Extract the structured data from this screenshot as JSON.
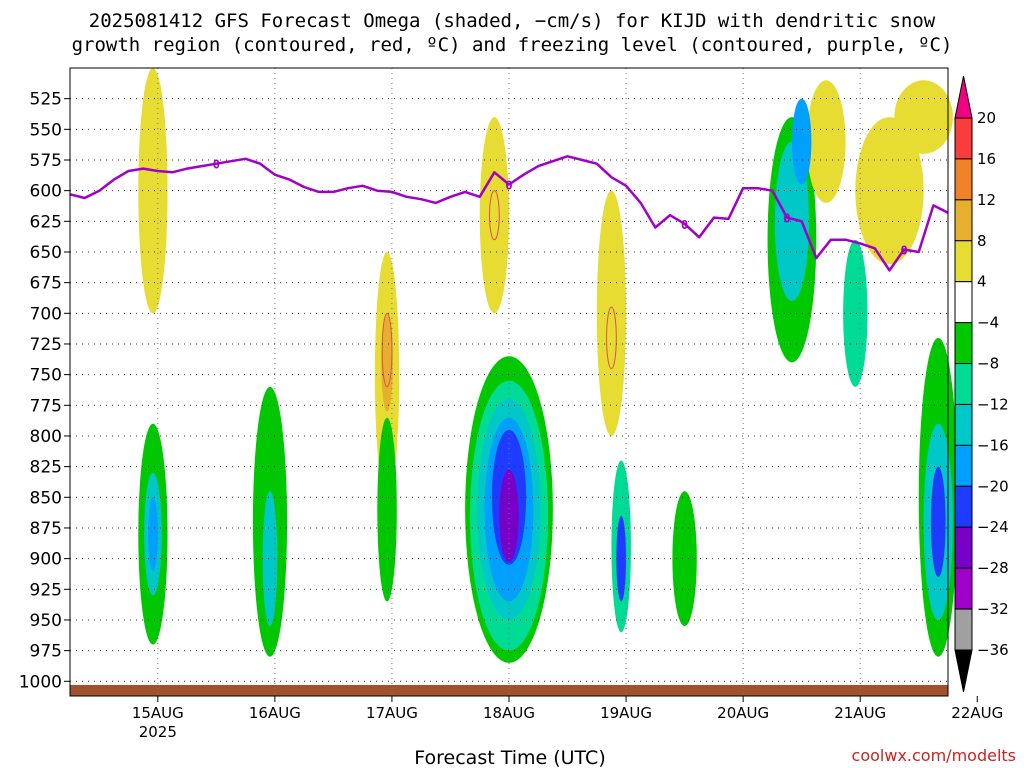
{
  "chart_data": {
    "type": "heatmap",
    "title_lines": [
      "2025081412 GFS Forecast Omega (shaded, −cm/s) for KIJD with dendritic snow",
      "growth region (contoured, red, ºC) and freezing level (contoured, purple, ºC)"
    ],
    "xlabel": "Forecast Time (UTC)",
    "x_start_hours": 15,
    "x_end_hours": 195,
    "x_ticks": [
      {
        "hours": 33,
        "label": "15AUG",
        "sub": "2025"
      },
      {
        "hours": 57,
        "label": "16AUG",
        "sub": ""
      },
      {
        "hours": 81,
        "label": "17AUG",
        "sub": ""
      },
      {
        "hours": 105,
        "label": "18AUG",
        "sub": ""
      },
      {
        "hours": 129,
        "label": "19AUG",
        "sub": ""
      },
      {
        "hours": 153,
        "label": "20AUG",
        "sub": ""
      },
      {
        "hours": 177,
        "label": "21AUG",
        "sub": ""
      },
      {
        "hours": 201,
        "label": "22AUG",
        "sub": ""
      }
    ],
    "y_ticks": [
      525,
      550,
      575,
      600,
      625,
      650,
      675,
      700,
      725,
      750,
      775,
      800,
      825,
      850,
      875,
      900,
      925,
      950,
      975,
      1000
    ],
    "y_axis_reversed": true,
    "grid": true,
    "colorbar": {
      "levels": [
        -36,
        -32,
        -28,
        -24,
        -20,
        -16,
        -12,
        -8,
        -4,
        4,
        8,
        12,
        16,
        20
      ],
      "colors": [
        "#000000",
        "#a0a0a0",
        "#a000c8",
        "#7800c8",
        "#1e3cff",
        "#00a0ff",
        "#00c8c8",
        "#00dc96",
        "#00c800",
        "#ffffff",
        "#e6dc32",
        "#e6af2d",
        "#f08228",
        "#fa3c3c",
        "#f00082"
      ]
    },
    "freezing_level_label": "0",
    "freezing_level": [
      [
        15,
        603
      ],
      [
        18,
        606
      ],
      [
        21,
        600
      ],
      [
        24,
        591
      ],
      [
        27,
        584
      ],
      [
        30,
        582
      ],
      [
        33,
        584
      ],
      [
        36,
        585
      ],
      [
        39,
        582
      ],
      [
        42,
        580
      ],
      [
        45,
        578
      ],
      [
        48,
        576
      ],
      [
        51,
        574
      ],
      [
        54,
        578
      ],
      [
        57,
        587
      ],
      [
        60,
        591
      ],
      [
        63,
        597
      ],
      [
        66,
        601
      ],
      [
        69,
        601
      ],
      [
        72,
        598
      ],
      [
        75,
        596
      ],
      [
        78,
        600
      ],
      [
        81,
        601
      ],
      [
        84,
        605
      ],
      [
        87,
        607
      ],
      [
        90,
        610
      ],
      [
        93,
        605
      ],
      [
        96,
        601
      ],
      [
        99,
        605
      ],
      [
        102,
        585
      ],
      [
        105,
        595
      ],
      [
        108,
        587
      ],
      [
        111,
        580
      ],
      [
        114,
        576
      ],
      [
        117,
        572
      ],
      [
        120,
        575
      ],
      [
        123,
        578
      ],
      [
        126,
        589
      ],
      [
        129,
        596
      ],
      [
        132,
        610
      ],
      [
        135,
        630
      ],
      [
        138,
        620
      ],
      [
        141,
        627
      ],
      [
        144,
        638
      ],
      [
        147,
        622
      ],
      [
        150,
        623
      ],
      [
        153,
        598
      ],
      [
        156,
        598
      ],
      [
        159,
        600
      ],
      [
        162,
        622
      ],
      [
        165,
        625
      ],
      [
        168,
        655
      ],
      [
        171,
        640
      ],
      [
        174,
        640
      ],
      [
        177,
        643
      ],
      [
        180,
        647
      ],
      [
        183,
        665
      ],
      [
        186,
        648
      ],
      [
        189,
        650
      ],
      [
        192,
        612
      ],
      [
        195,
        618
      ]
    ],
    "omega_regions": [
      {
        "level": -28,
        "t": 105,
        "p": 865,
        "dt": 2,
        "dp": 75
      },
      {
        "level": -24,
        "t": 105,
        "p": 850,
        "dt": 3.5,
        "dp": 110
      },
      {
        "level": -20,
        "t": 105,
        "p": 860,
        "dt": 5,
        "dp": 150
      },
      {
        "level": -16,
        "t": 105,
        "p": 860,
        "dt": 6.5,
        "dp": 180
      },
      {
        "level": -12,
        "t": 105,
        "p": 865,
        "dt": 8,
        "dp": 220
      },
      {
        "level": -8,
        "t": 105,
        "p": 860,
        "dt": 9,
        "dp": 250
      },
      {
        "level": -20,
        "t": 32,
        "p": 880,
        "dt": 1,
        "dp": 60
      },
      {
        "level": -16,
        "t": 32,
        "p": 880,
        "dt": 1.8,
        "dp": 100
      },
      {
        "level": -8,
        "t": 32,
        "p": 880,
        "dt": 3,
        "dp": 180
      },
      {
        "level": -16,
        "t": 56,
        "p": 900,
        "dt": 1.5,
        "dp": 110
      },
      {
        "level": -8,
        "t": 56,
        "p": 870,
        "dt": 3.5,
        "dp": 220
      },
      {
        "level": -8,
        "t": 80,
        "p": 860,
        "dt": 2,
        "dp": 150
      },
      {
        "level": -24,
        "t": 128,
        "p": 900,
        "dt": 1,
        "dp": 70
      },
      {
        "level": -12,
        "t": 128,
        "p": 890,
        "dt": 2,
        "dp": 140
      },
      {
        "level": -20,
        "t": 165,
        "p": 560,
        "dt": 2,
        "dp": 70
      },
      {
        "level": -16,
        "t": 163,
        "p": 625,
        "dt": 3.5,
        "dp": 130
      },
      {
        "level": -8,
        "t": 163,
        "p": 640,
        "dt": 5,
        "dp": 200
      },
      {
        "level": -8,
        "t": 141,
        "p": 900,
        "dt": 2.5,
        "dp": 110
      },
      {
        "level": -12,
        "t": 176,
        "p": 700,
        "dt": 2.5,
        "dp": 120
      },
      {
        "level": -24,
        "t": 193,
        "p": 870,
        "dt": 1.5,
        "dp": 90
      },
      {
        "level": -16,
        "t": 193,
        "p": 870,
        "dt": 3,
        "dp": 160
      },
      {
        "level": -8,
        "t": 193,
        "p": 850,
        "dt": 4,
        "dp": 260
      },
      {
        "level": 4,
        "t": 32,
        "p": 600,
        "dt": 3,
        "dp": 200
      },
      {
        "level": 4,
        "t": 80,
        "p": 750,
        "dt": 2.5,
        "dp": 200
      },
      {
        "level": 8,
        "t": 80,
        "p": 740,
        "dt": 1.2,
        "dp": 80
      },
      {
        "level": 4,
        "t": 102,
        "p": 620,
        "dt": 3,
        "dp": 160
      },
      {
        "level": 4,
        "t": 126,
        "p": 700,
        "dt": 3,
        "dp": 200
      },
      {
        "level": 4,
        "t": 170,
        "p": 560,
        "dt": 4,
        "dp": 100
      },
      {
        "level": 4,
        "t": 183,
        "p": 600,
        "dt": 7,
        "dp": 120
      },
      {
        "level": 4,
        "t": 190,
        "p": 540,
        "dt": 6,
        "dp": 60
      }
    ],
    "dgz_regions": [
      {
        "t": 80,
        "p": 730,
        "dt": 1,
        "dp": 60
      },
      {
        "t": 102,
        "p": 620,
        "dt": 1,
        "dp": 40
      },
      {
        "t": 126,
        "p": 720,
        "dt": 1,
        "dp": 50
      }
    ]
  },
  "credit": "coolwx.com/modelts",
  "colors": {
    "freezing": "#a000c8",
    "dgz": "#e05050",
    "ground": "#a0522d"
  }
}
